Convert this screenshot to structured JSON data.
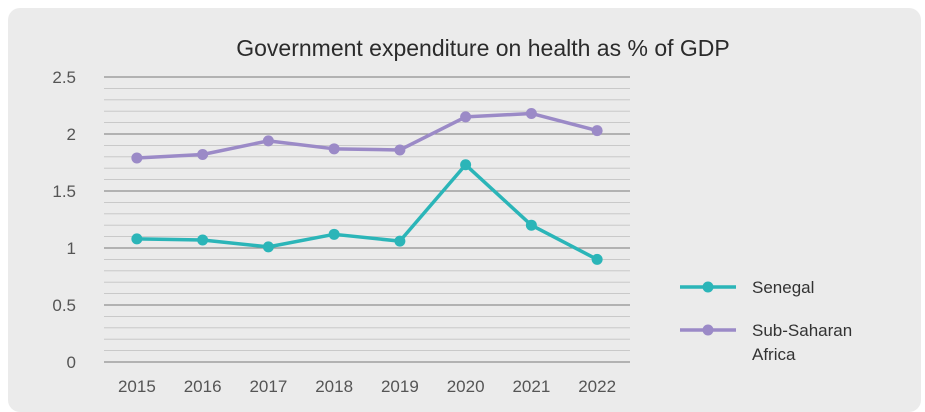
{
  "chart_data": {
    "type": "line",
    "title": "Government expenditure on health as % of GDP",
    "xlabel": "",
    "ylabel": "",
    "categories": [
      "2015",
      "2016",
      "2017",
      "2018",
      "2019",
      "2020",
      "2021",
      "2022"
    ],
    "ylim": [
      0,
      2.5
    ],
    "yticks": [
      "0",
      "0.5",
      "1",
      "1.5",
      "2",
      "2.5"
    ],
    "grid": true,
    "legend_position": "right",
    "series": [
      {
        "name": "Senegal",
        "color": "#2bb5b8",
        "values": [
          1.08,
          1.07,
          1.01,
          1.12,
          1.06,
          1.73,
          1.2,
          0.9
        ]
      },
      {
        "name": "Sub-Saharan Africa",
        "color": "#9b8ac7",
        "values": [
          1.79,
          1.82,
          1.94,
          1.87,
          1.86,
          2.15,
          2.18,
          2.03
        ]
      }
    ]
  }
}
